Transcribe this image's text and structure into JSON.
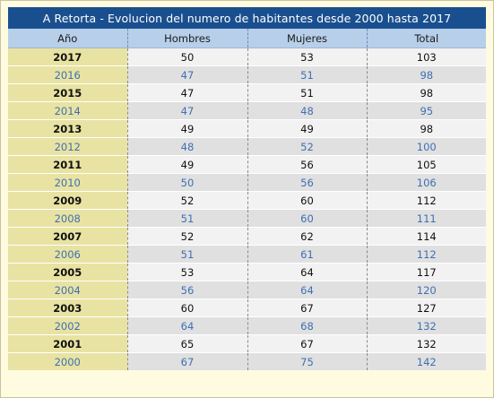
{
  "table": {
    "title": "A Retorta - Evolucion del numero de habitantes desde 2000 hasta 2017",
    "headers": [
      "Año",
      "Hombres",
      "Mujeres",
      "Total"
    ],
    "rows": [
      {
        "year": "2017",
        "hombres": "50",
        "mujeres": "53",
        "total": "103"
      },
      {
        "year": "2016",
        "hombres": "47",
        "mujeres": "51",
        "total": "98"
      },
      {
        "year": "2015",
        "hombres": "47",
        "mujeres": "51",
        "total": "98"
      },
      {
        "year": "2014",
        "hombres": "47",
        "mujeres": "48",
        "total": "95"
      },
      {
        "year": "2013",
        "hombres": "49",
        "mujeres": "49",
        "total": "98"
      },
      {
        "year": "2012",
        "hombres": "48",
        "mujeres": "52",
        "total": "100"
      },
      {
        "year": "2011",
        "hombres": "49",
        "mujeres": "56",
        "total": "105"
      },
      {
        "year": "2010",
        "hombres": "50",
        "mujeres": "56",
        "total": "106"
      },
      {
        "year": "2009",
        "hombres": "52",
        "mujeres": "60",
        "total": "112"
      },
      {
        "year": "2008",
        "hombres": "51",
        "mujeres": "60",
        "total": "111"
      },
      {
        "year": "2007",
        "hombres": "52",
        "mujeres": "62",
        "total": "114"
      },
      {
        "year": "2006",
        "hombres": "51",
        "mujeres": "61",
        "total": "112"
      },
      {
        "year": "2005",
        "hombres": "53",
        "mujeres": "64",
        "total": "117"
      },
      {
        "year": "2004",
        "hombres": "56",
        "mujeres": "64",
        "total": "120"
      },
      {
        "year": "2003",
        "hombres": "60",
        "mujeres": "67",
        "total": "127"
      },
      {
        "year": "2002",
        "hombres": "64",
        "mujeres": "68",
        "total": "132"
      },
      {
        "year": "2001",
        "hombres": "65",
        "mujeres": "67",
        "total": "132"
      },
      {
        "year": "2000",
        "hombres": "67",
        "mujeres": "75",
        "total": "142"
      }
    ]
  },
  "colors": {
    "title_bg": "#1a4f8f",
    "header_bg": "#b7cfe9",
    "year_col_bg": "#e8e3a2",
    "even_row_text": "#3f6fb3",
    "page_bg": "#fffbe0"
  }
}
